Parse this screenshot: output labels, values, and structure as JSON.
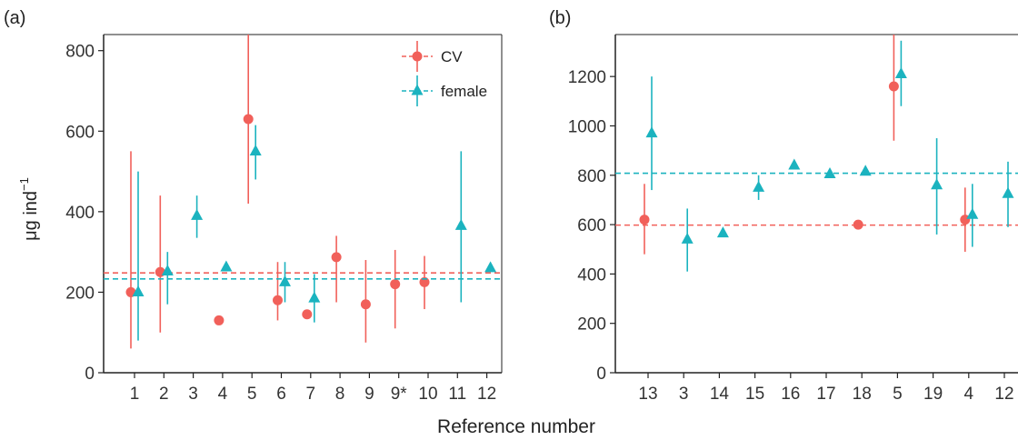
{
  "figure": {
    "shared_xlabel": "Reference number",
    "shared_ylabel": "μg ind",
    "ylabel_superscript": "−1"
  },
  "colors": {
    "cv": "#f1605a",
    "female": "#1bb3bf",
    "axis": "#222222"
  },
  "chart_data": [
    {
      "type": "scatter",
      "panel_label": "(a)",
      "panel_letter": "a",
      "categories": [
        "1",
        "2",
        "3",
        "4",
        "5",
        "6",
        "7",
        "8",
        "9",
        "9*",
        "10",
        "11",
        "12"
      ],
      "ylim": [
        0,
        840
      ],
      "yticks": [
        0,
        200,
        400,
        600,
        800
      ],
      "grid": false,
      "legend": {
        "position": "top-right",
        "entries": [
          "CV",
          "female"
        ]
      },
      "series": [
        {
          "name": "CV",
          "marker": "circle",
          "values": [
            200,
            250,
            null,
            130,
            630,
            180,
            145,
            287,
            170,
            220,
            225,
            null,
            null
          ],
          "err_low": [
            60,
            100,
            null,
            null,
            420,
            130,
            null,
            175,
            75,
            110,
            158,
            null,
            null
          ],
          "err_high": [
            550,
            440,
            null,
            null,
            840,
            275,
            null,
            340,
            280,
            305,
            290,
            null,
            null
          ],
          "reference_line": 248
        },
        {
          "name": "female",
          "marker": "triangle",
          "values": [
            200,
            252,
            390,
            262,
            550,
            225,
            185,
            null,
            null,
            null,
            null,
            365,
            260
          ],
          "err_low": [
            80,
            170,
            335,
            null,
            480,
            175,
            125,
            null,
            null,
            null,
            null,
            175,
            null
          ],
          "err_high": [
            500,
            300,
            440,
            null,
            615,
            275,
            245,
            null,
            null,
            null,
            null,
            550,
            null
          ],
          "reference_line": 233
        }
      ]
    },
    {
      "type": "scatter",
      "panel_label": "(b)",
      "panel_letter": "b",
      "categories": [
        "13",
        "3",
        "14",
        "15",
        "16",
        "17",
        "18",
        "5",
        "19",
        "4",
        "12"
      ],
      "ylim": [
        0,
        1370
      ],
      "yticks": [
        0,
        200,
        400,
        600,
        800,
        1000,
        1200
      ],
      "grid": false,
      "series": [
        {
          "name": "CV",
          "marker": "circle",
          "values": [
            620,
            null,
            null,
            null,
            null,
            null,
            600,
            1160,
            null,
            620,
            null
          ],
          "err_low": [
            480,
            null,
            null,
            null,
            null,
            null,
            null,
            940,
            null,
            490,
            null
          ],
          "err_high": [
            765,
            null,
            null,
            null,
            null,
            null,
            null,
            1370,
            null,
            750,
            null
          ],
          "reference_line": 598
        },
        {
          "name": "female",
          "marker": "triangle",
          "values": [
            970,
            540,
            565,
            750,
            840,
            805,
            815,
            1210,
            760,
            640,
            725
          ],
          "err_low": [
            740,
            410,
            null,
            700,
            null,
            null,
            null,
            1080,
            560,
            510,
            590
          ],
          "err_high": [
            1200,
            665,
            null,
            800,
            null,
            null,
            null,
            1345,
            950,
            765,
            855
          ],
          "reference_line": 808
        }
      ]
    }
  ]
}
